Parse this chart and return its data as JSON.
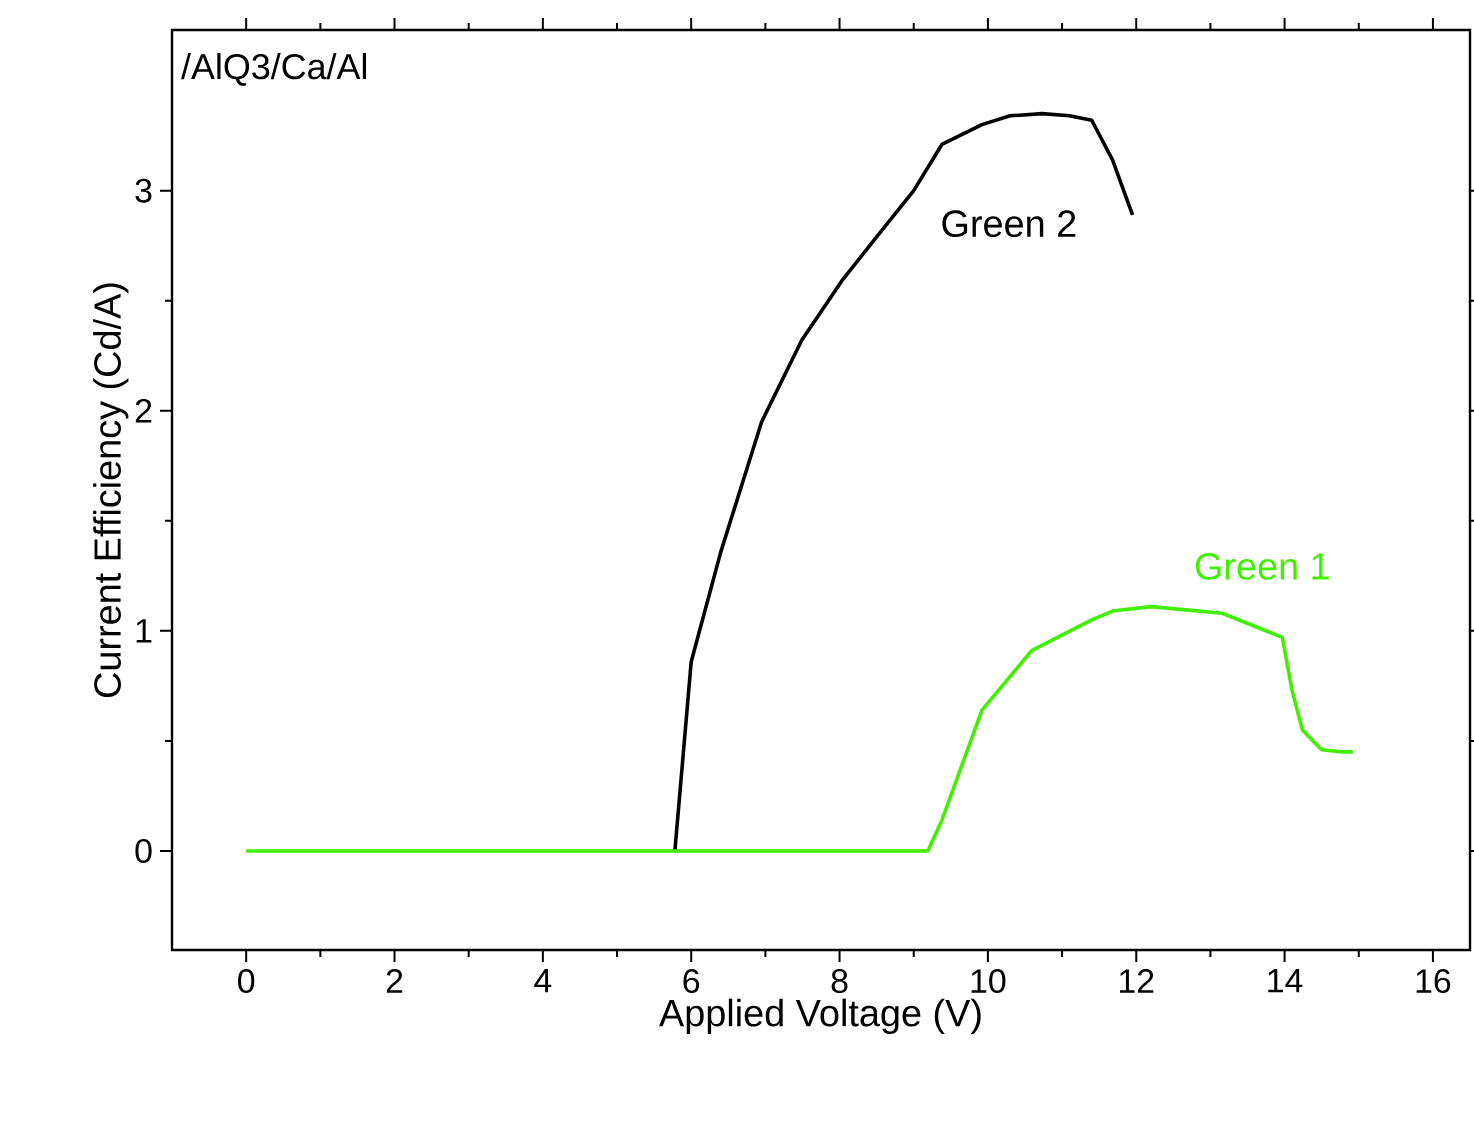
{
  "chart_data": {
    "type": "line",
    "xlabel": "Applied Voltage (V)",
    "ylabel": "Current Efficiency (Cd/A)",
    "annotations": [
      "/AlQ3/Ca/Al"
    ],
    "xlim": [
      -1,
      16.5
    ],
    "ylim": [
      -0.45,
      3.73
    ],
    "xticks": [
      0,
      2,
      4,
      6,
      8,
      10,
      12,
      14,
      16
    ],
    "yticks": [
      0,
      1,
      2,
      3
    ],
    "grid": false,
    "marker": "none",
    "line_style": "solid",
    "series": [
      {
        "name": "Green 2",
        "color": "#000000",
        "x": [
          5.78,
          6.0,
          6.4,
          6.95,
          7.49,
          8.03,
          8.57,
          9.0,
          9.38,
          9.92,
          10.3,
          10.73,
          11.1,
          11.4,
          11.68,
          11.95
        ],
        "values": [
          0,
          0.86,
          1.36,
          1.95,
          2.32,
          2.59,
          2.82,
          3.0,
          3.21,
          3.3,
          3.34,
          3.35,
          3.34,
          3.32,
          3.14,
          2.89
        ]
      },
      {
        "name": "Green 1",
        "color": "#40f000",
        "x": [
          0,
          2,
          4,
          6,
          8,
          9.19,
          9.38,
          9.92,
          10.59,
          11.4,
          11.68,
          12.2,
          13.16,
          13.97,
          14.1,
          14.24,
          14.5,
          14.78,
          14.92
        ],
        "values": [
          0,
          0,
          0,
          0,
          0,
          0,
          0.14,
          0.64,
          0.91,
          1.05,
          1.09,
          1.11,
          1.08,
          0.97,
          0.73,
          0.55,
          0.46,
          0.45,
          0.45
        ]
      }
    ]
  }
}
